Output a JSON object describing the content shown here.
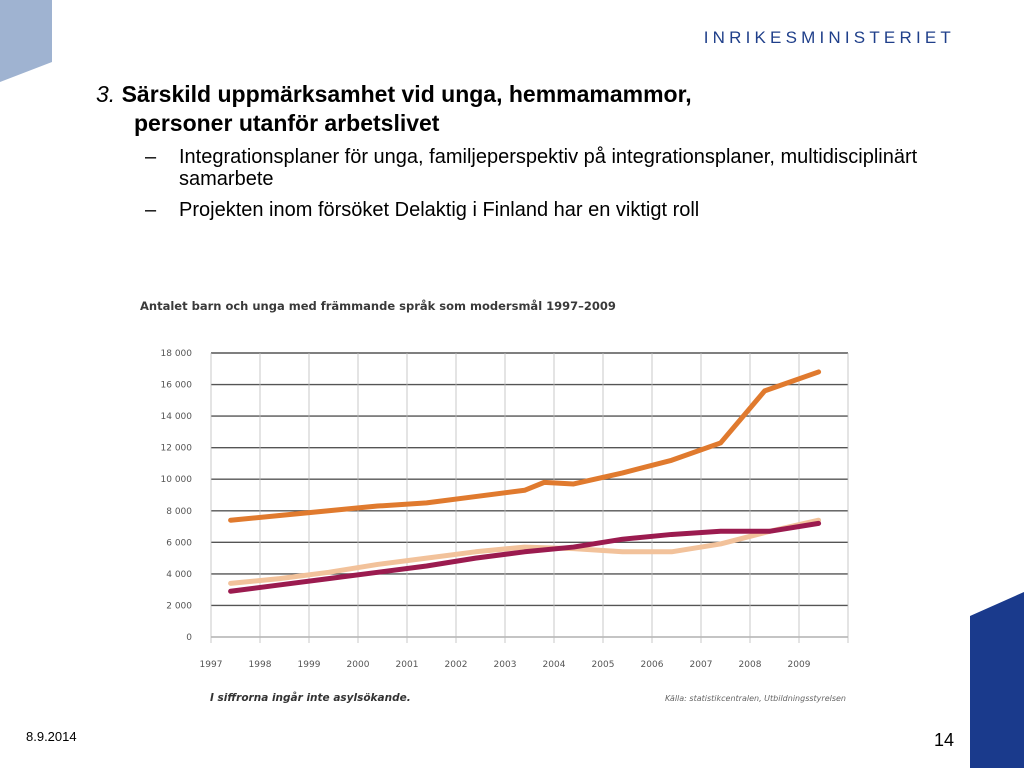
{
  "header": {
    "ministry": "INRIKESMINISTERIET"
  },
  "heading": {
    "number": "3.",
    "line1": "Särskild uppmärksamhet vid unga, hemmamammor,",
    "line2": "personer utanför arbetslivet"
  },
  "bullets": [
    {
      "dash": "–",
      "text": "Integrationsplaner för unga, familjeperspektiv på integrationsplaner, multidisciplinärt samarbete"
    },
    {
      "dash": "–",
      "text": "Projekten inom försöket Delaktig i Finland har en viktigt roll"
    }
  ],
  "footer": {
    "date": "8.9.2014",
    "page": "14"
  },
  "colors": {
    "brand_blue": "#1f3f8a",
    "corner_light": "#9fb3d1",
    "corner_dark": "#1a3a8c"
  },
  "chart_data": {
    "type": "line",
    "title": "Antalet barn och unga med främmande språk som modersmål 1997–2009",
    "note": "I siffrorna ingår inte asylsökande.",
    "source": "Källa: statistikcentralen, Utbildningsstyrelsen",
    "x": [
      1997,
      1998,
      1999,
      2000,
      2001,
      2002,
      2003,
      2004,
      2005,
      2006,
      2007,
      2008,
      2009
    ],
    "x_tick_labels": [
      "1997",
      "1998",
      "1999",
      "2000",
      "2001",
      "2002",
      "2003",
      "2004",
      "2005",
      "2006",
      "2007",
      "2008",
      "2009"
    ],
    "y_tick_labels": [
      "0",
      "2 000",
      "4 000",
      "6 000",
      "8 000",
      "10 000",
      "12 000",
      "14 000",
      "16 000",
      "18 000"
    ],
    "y_ticks": [
      0,
      2000,
      4000,
      6000,
      8000,
      10000,
      12000,
      14000,
      16000,
      18000
    ],
    "ylim": [
      0,
      18000
    ],
    "xlim": [
      1997,
      2010
    ],
    "grid": true,
    "series": [
      {
        "color": "#e07a2e",
        "x": [
          1997.4,
          1998.4,
          1999.4,
          2000.4,
          2001.4,
          2002.4,
          2003.4,
          2003.8,
          2004.4,
          2005.4,
          2006.4,
          2007.4,
          2008.3,
          2009.4
        ],
        "values": [
          7400,
          7700,
          8000,
          8300,
          8500,
          8900,
          9300,
          9800,
          9700,
          10400,
          11200,
          12300,
          15600,
          16800
        ]
      },
      {
        "color": "#f2c29b",
        "x": [
          1997.4,
          1998.4,
          1999.4,
          2000.4,
          2001.4,
          2002.4,
          2003.4,
          2004.4,
          2005.4,
          2006.4,
          2007.4,
          2008.4,
          2009.4
        ],
        "values": [
          3400,
          3700,
          4100,
          4600,
          5000,
          5400,
          5700,
          5600,
          5400,
          5400,
          5900,
          6700,
          7400
        ]
      },
      {
        "color": "#9b1b4f",
        "x": [
          1997.4,
          1998.4,
          1999.4,
          2000.4,
          2001.4,
          2002.4,
          2003.4,
          2004.4,
          2005.4,
          2006.4,
          2007.4,
          2008.4,
          2009.4
        ],
        "values": [
          2900,
          3300,
          3700,
          4100,
          4500,
          5000,
          5400,
          5700,
          6200,
          6500,
          6700,
          6700,
          7200
        ]
      }
    ]
  }
}
